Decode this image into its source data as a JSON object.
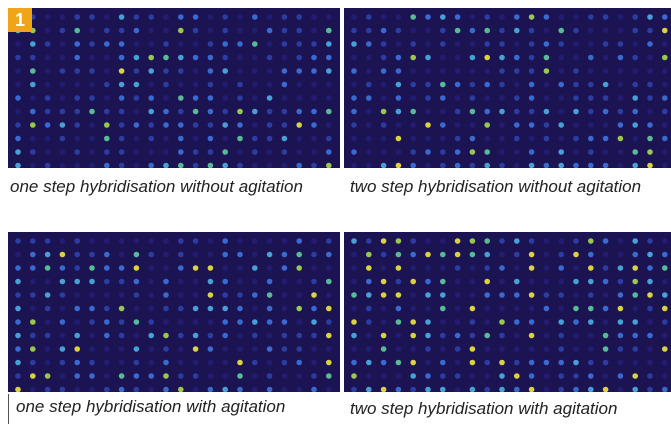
{
  "badge": "1",
  "panels": [
    {
      "caption": "one step hybridisation without agitation"
    },
    {
      "caption": "two step hybridisation without agitation"
    },
    {
      "caption": "one step hybridisation with agitation"
    },
    {
      "caption": "two step hybridisation with agitation"
    }
  ]
}
